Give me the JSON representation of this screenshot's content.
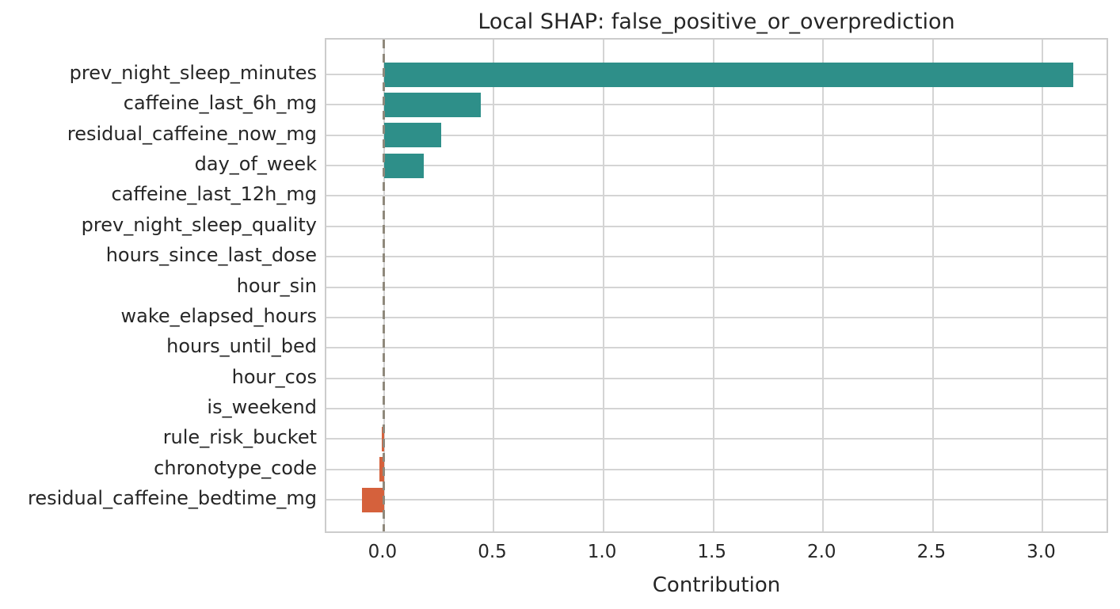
{
  "chart_data": {
    "type": "bar",
    "orientation": "horizontal",
    "title": "Local SHAP: false_positive_or_overprediction",
    "xlabel": "Contribution",
    "ylabel": "",
    "categories": [
      "prev_night_sleep_minutes",
      "caffeine_last_6h_mg",
      "residual_caffeine_now_mg",
      "day_of_week",
      "caffeine_last_12h_mg",
      "prev_night_sleep_quality",
      "hours_since_last_dose",
      "hour_sin",
      "wake_elapsed_hours",
      "hours_until_bed",
      "hour_cos",
      "is_weekend",
      "rule_risk_bucket",
      "chronotype_code",
      "residual_caffeine_bedtime_mg"
    ],
    "values": [
      3.14,
      0.44,
      0.26,
      0.18,
      0.0,
      0.0,
      0.0,
      0.0,
      0.0,
      0.0,
      0.0,
      0.0,
      -0.01,
      -0.02,
      -0.1
    ],
    "x_ticks": [
      "0.0",
      "0.5",
      "1.0",
      "1.5",
      "2.0",
      "2.5",
      "3.0"
    ],
    "x_tick_values": [
      0.0,
      0.5,
      1.0,
      1.5,
      2.0,
      2.5,
      3.0
    ],
    "xlim": [
      -0.263,
      3.305
    ],
    "grid": true,
    "legend": "none",
    "zero_line": {
      "x": 0.0,
      "style": "dashed"
    },
    "colors": {
      "positive_bar": "#2e8f89",
      "negative_bar": "#d5613c",
      "zero_line": "#8f897c",
      "gridline": "#d4d4d4",
      "text": "#262626",
      "background": "#ffffff"
    }
  }
}
